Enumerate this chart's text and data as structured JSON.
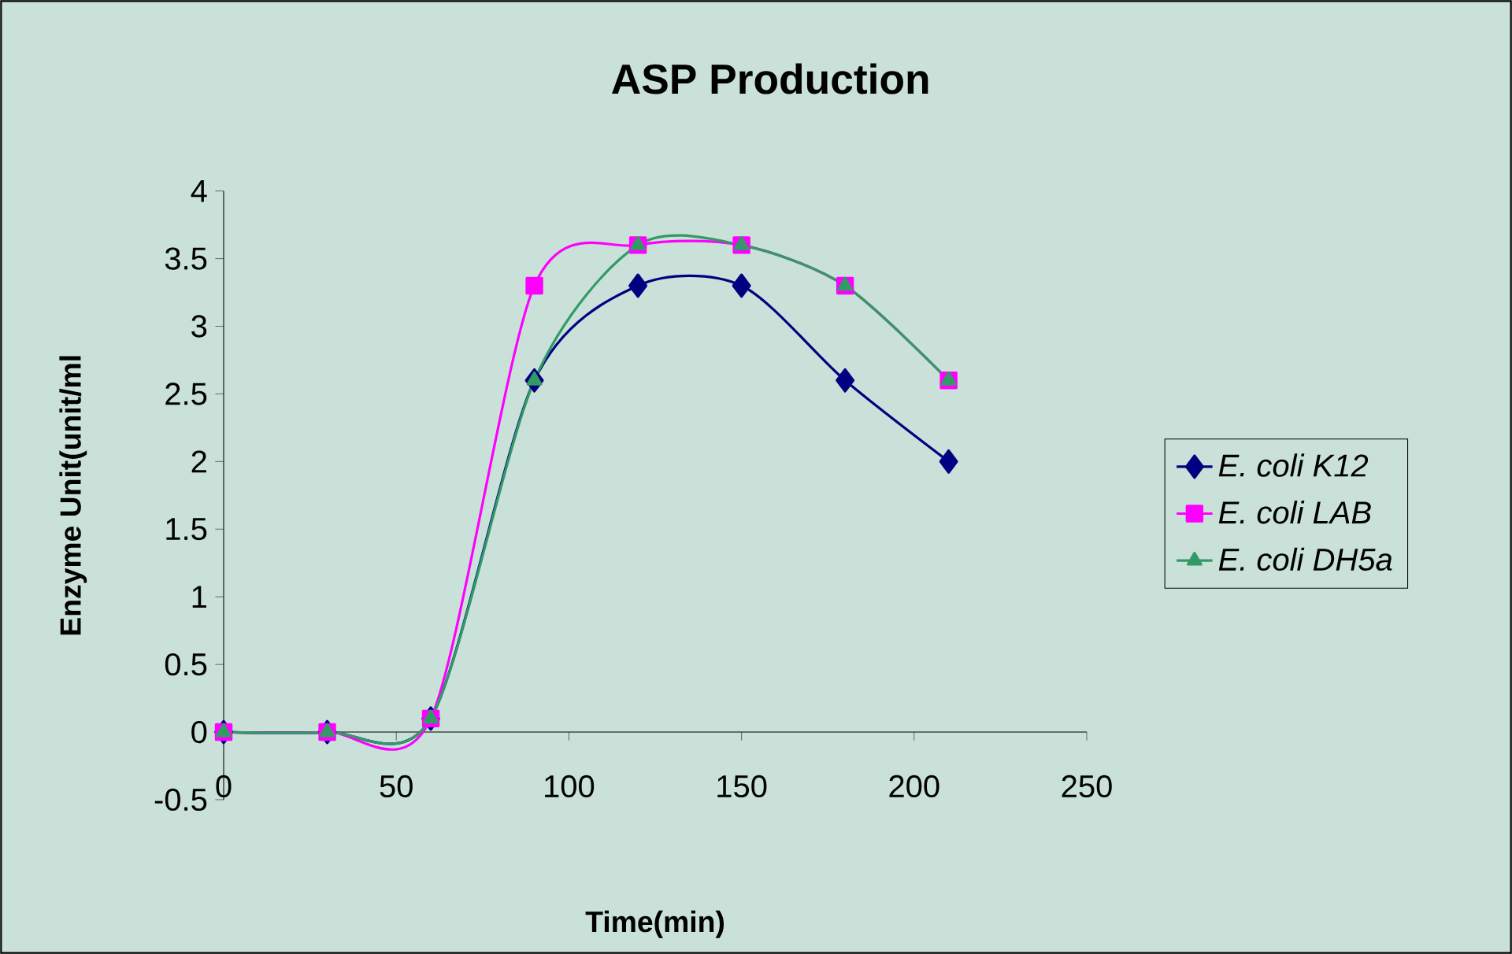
{
  "chart_data": {
    "type": "line",
    "title": "ASP Production",
    "xlabel": "Time(min)",
    "ylabel": "Enzyme Unit(unit/ml",
    "x": [
      0,
      30,
      60,
      90,
      120,
      150,
      180,
      210
    ],
    "xlim": [
      0,
      250
    ],
    "xticks": [
      0,
      50,
      100,
      150,
      200,
      250
    ],
    "ylim": [
      -0.5,
      4
    ],
    "yticks": [
      -0.5,
      0,
      0.5,
      1,
      1.5,
      2,
      2.5,
      3,
      3.5,
      4
    ],
    "legend": "right",
    "line_style": "solid",
    "series": [
      {
        "name": "E. coli K12",
        "color": "#000080",
        "marker": "diamond",
        "values": [
          0,
          0,
          0.1,
          2.6,
          3.3,
          3.3,
          2.6,
          2.0
        ]
      },
      {
        "name": "E. coli LAB",
        "color": "#ff00ff",
        "marker": "square",
        "values": [
          0,
          0,
          0.1,
          3.3,
          3.6,
          3.6,
          3.3,
          2.6
        ]
      },
      {
        "name": "E. coli DH5a",
        "color": "#339966",
        "marker": "triangle",
        "values": [
          0,
          0,
          0.1,
          2.6,
          3.6,
          3.6,
          3.3,
          2.6
        ]
      }
    ]
  }
}
